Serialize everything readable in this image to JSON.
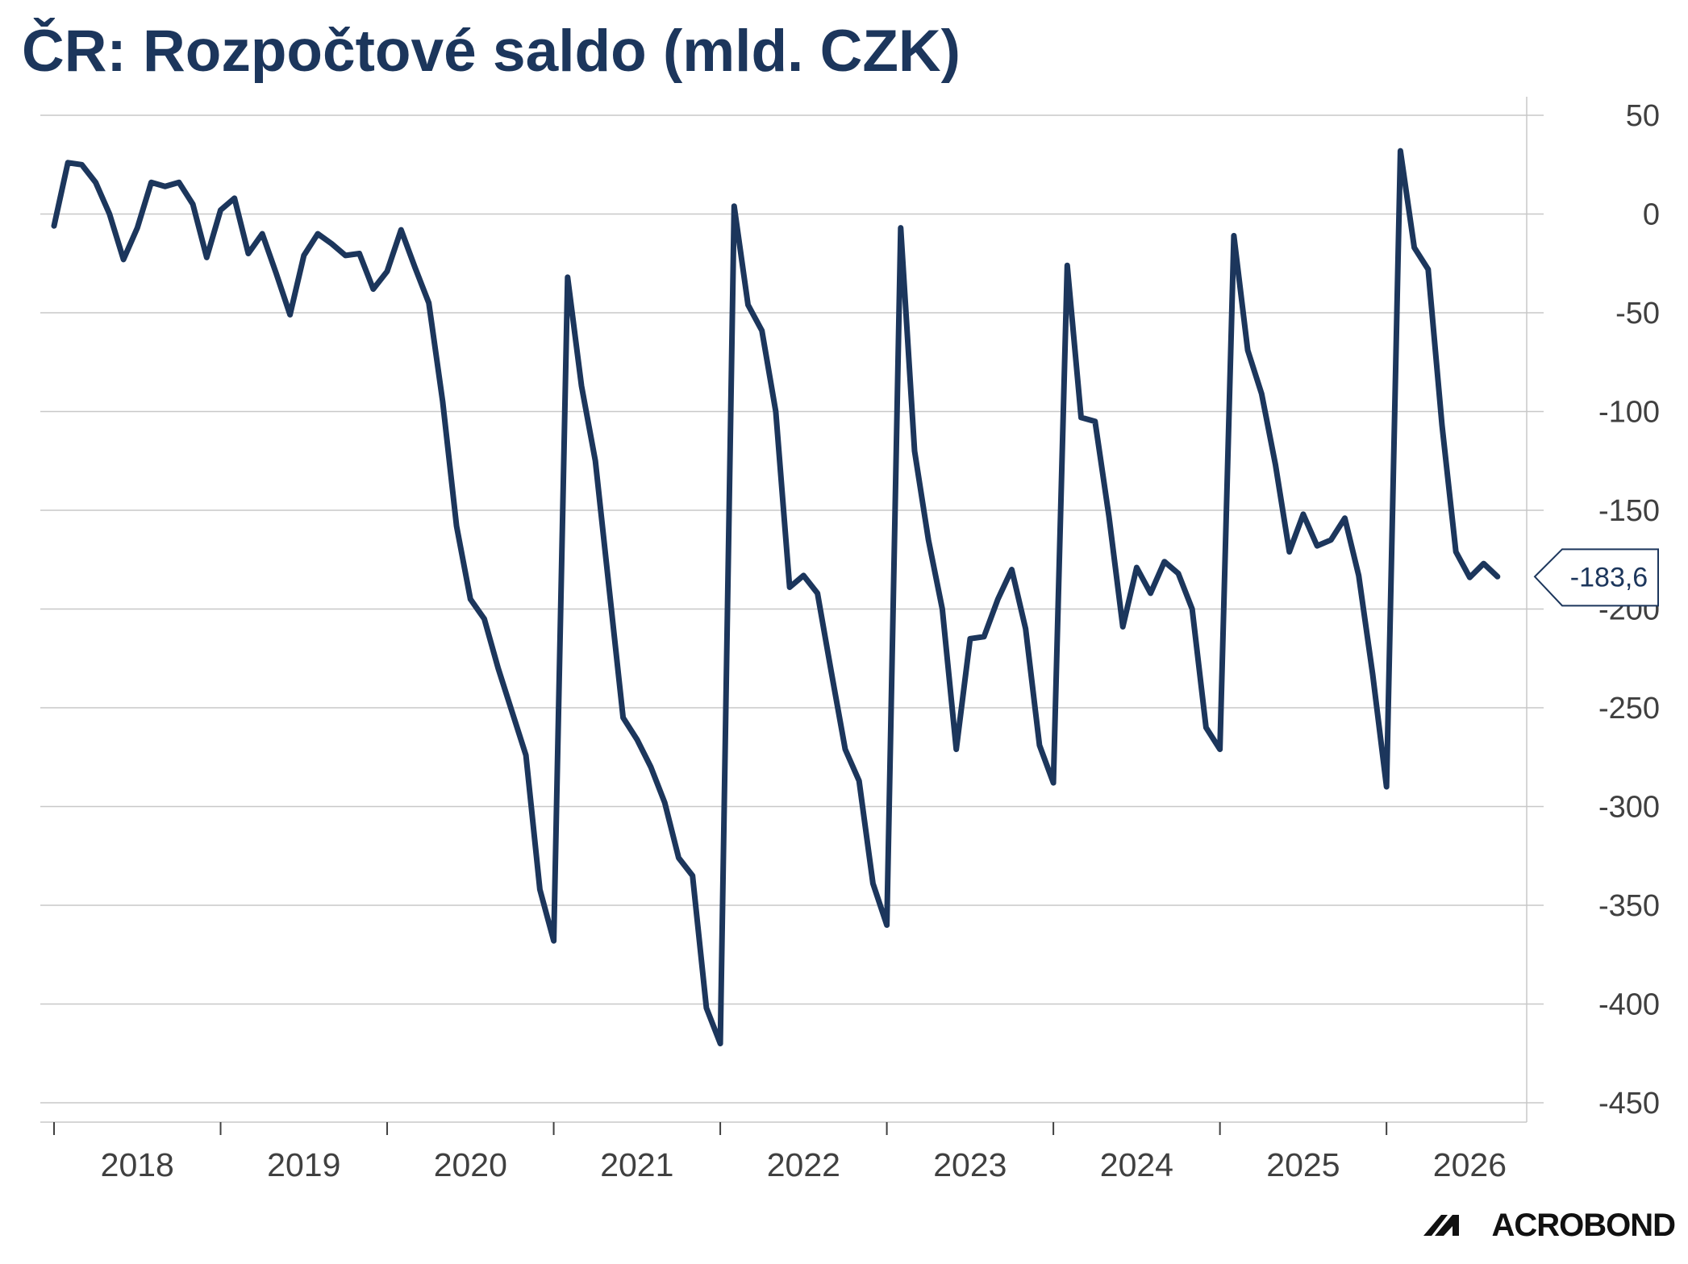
{
  "chart_data": {
    "type": "line",
    "title": "ČR: Rozpočtové saldo (mld. CZK)",
    "xlabel": "",
    "ylabel": "",
    "x_start": "2018-01",
    "frequency": "monthly",
    "ylim": [
      -460,
      60
    ],
    "yticks": [
      50,
      0,
      -50,
      -100,
      -150,
      -200,
      -250,
      -300,
      -350,
      -400,
      -450
    ],
    "ytick_labels": [
      "50",
      "0",
      "-50",
      "-100",
      "-150",
      "-200",
      "-250",
      "-300",
      "-350",
      "-400",
      "-450"
    ],
    "xtick_labels": [
      "2018",
      "2019",
      "2020",
      "2021",
      "2022",
      "2023",
      "2024",
      "2025",
      "2026"
    ],
    "y_axis_side": "right",
    "grid": true,
    "color": "#1c365c",
    "series": [
      {
        "values": [
          -6,
          26,
          25,
          16,
          0,
          -23,
          -7,
          16,
          14,
          16,
          5,
          -22,
          2,
          8,
          -20,
          -10,
          -30,
          -51,
          -21,
          -10,
          -15,
          -21,
          -20,
          -38,
          -29,
          -8,
          -27,
          -45,
          -95,
          -158,
          -195,
          -205,
          -230,
          -252,
          -274,
          -342,
          -368,
          -32,
          -87,
          -125,
          -190,
          -255,
          -266,
          -280,
          -298,
          -326,
          -335,
          -402,
          -420,
          4,
          -46,
          -59,
          -100,
          -189,
          -183,
          -192,
          -232,
          -271,
          -287,
          -339,
          -360,
          -7,
          -120,
          -165,
          -200,
          -271,
          -215,
          -214,
          -195,
          -180,
          -210,
          -269,
          -288,
          -26,
          -103,
          -105,
          -153,
          -209,
          -179,
          -192,
          -176,
          -182,
          -200,
          -260,
          -271,
          -11,
          -69,
          -91,
          -127,
          -171,
          -152,
          -168,
          -165,
          -154,
          -183,
          -233,
          -290,
          32,
          -17,
          -28,
          -107,
          -171,
          -184,
          -177,
          -183.6
        ]
      }
    ],
    "last_value_label": "-183,6",
    "source_logo": "MACROBOND"
  }
}
